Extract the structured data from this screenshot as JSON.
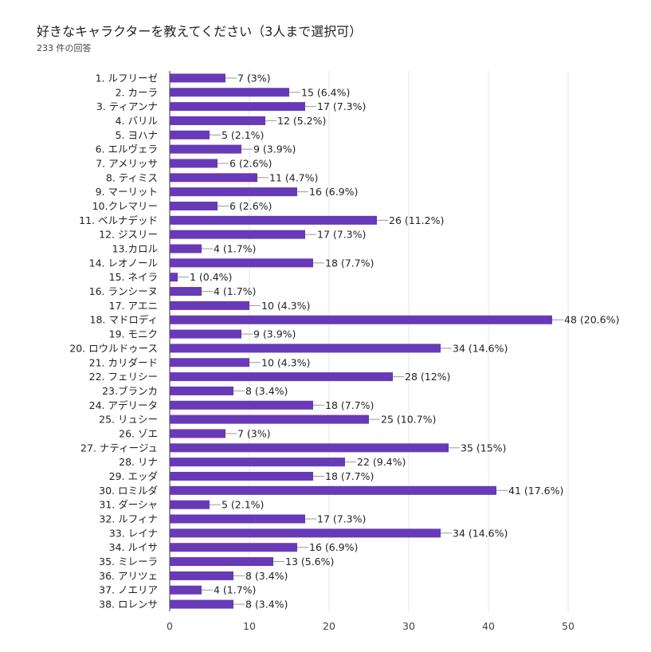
{
  "title": "好きなキャラクターを教えてください（3人まで選択可）",
  "subtitle": "233 件の回答",
  "chart_data": {
    "type": "bar",
    "orientation": "horizontal",
    "bar_color": "#673ab7",
    "grid": true,
    "xlim": [
      0,
      50
    ],
    "x_ticks": [
      0,
      10,
      20,
      30,
      40,
      50
    ],
    "categories": [
      "1. ルフリーゼ",
      "2. カーラ",
      "3. ティアンナ",
      "4. バリル",
      "5. ヨハナ",
      "6. エルヴェラ",
      "7. アメリッサ",
      "8. ティミス",
      "9. マーリット",
      "10.クレマリー",
      "11. ベルナデッド",
      "12. ジスリー",
      "13.カロル",
      "14. レオノール",
      "15. ネイラ",
      "16. ランシーヌ",
      "17. アエニ",
      "18. マドロディ",
      "19. モニク",
      "20. ロウルドゥース",
      "21. カリダード",
      "22. フェリシー",
      "23.ブランカ",
      "24. アデリータ",
      "25. リュシー",
      "26. ゾエ",
      "27. ナティージュ",
      "28. リナ",
      "29. エッダ",
      "30. ロミルダ",
      "31. ダーシャ",
      "32. ルフィナ",
      "33. レイナ",
      "34. ルイサ",
      "35. ミレーラ",
      "36. アリツェ",
      "37. ノエリア",
      "38. ロレンサ"
    ],
    "values": [
      7,
      15,
      17,
      12,
      5,
      9,
      6,
      11,
      16,
      6,
      26,
      17,
      4,
      18,
      1,
      4,
      10,
      48,
      9,
      34,
      10,
      28,
      8,
      18,
      25,
      7,
      35,
      22,
      18,
      41,
      5,
      17,
      34,
      16,
      13,
      8,
      4,
      8
    ],
    "value_labels": [
      "7 (3%)",
      "15 (6.4%)",
      "17 (7.3%)",
      "12 (5.2%)",
      "5 (2.1%)",
      "9 (3.9%)",
      "6 (2.6%)",
      "11 (4.7%)",
      "16 (6.9%)",
      "6 (2.6%)",
      "26 (11.2%)",
      "17 (7.3%)",
      "4 (1.7%)",
      "18 (7.7%)",
      "1 (0.4%)",
      "4 (1.7%)",
      "10 (4.3%)",
      "48 (20.6%)",
      "9 (3.9%)",
      "34 (14.6%)",
      "10 (4.3%)",
      "28 (12%)",
      "8 (3.4%)",
      "18 (7.7%)",
      "25 (10.7%)",
      "7 (3%)",
      "35 (15%)",
      "22 (9.4%)",
      "18 (7.7%)",
      "41 (17.6%)",
      "5 (2.1%)",
      "17 (7.3%)",
      "34 (14.6%)",
      "16 (6.9%)",
      "13 (5.6%)",
      "8 (3.4%)",
      "4 (1.7%)",
      "8 (3.4%)"
    ]
  }
}
